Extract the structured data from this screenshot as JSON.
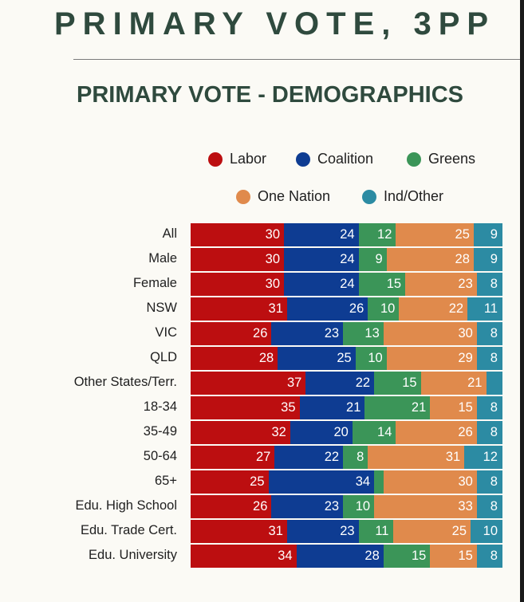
{
  "header": {
    "title": "PRIMARY VOTE, 3PP"
  },
  "chart_data": {
    "type": "bar",
    "orientation": "horizontal-stacked-100",
    "title": "PRIMARY VOTE - DEMOGRAPHICS",
    "legend_position": "top",
    "series_colors": {
      "Labor": "#bc0e10",
      "Coalition": "#0e3c92",
      "Greens": "#3b9558",
      "One Nation": "#e08a4c",
      "Ind/Other": "#2c8ba3"
    },
    "series": [
      {
        "name": "Labor",
        "values": [
          30,
          30,
          30,
          31,
          26,
          28,
          37,
          35,
          32,
          27,
          25,
          26,
          31,
          34
        ]
      },
      {
        "name": "Coalition",
        "values": [
          24,
          24,
          24,
          26,
          23,
          25,
          22,
          21,
          20,
          22,
          34,
          23,
          23,
          28
        ]
      },
      {
        "name": "Greens",
        "values": [
          12,
          9,
          15,
          10,
          13,
          10,
          15,
          21,
          14,
          8,
          null,
          10,
          11,
          15
        ]
      },
      {
        "name": "One Nation",
        "values": [
          25,
          28,
          23,
          22,
          30,
          29,
          21,
          15,
          26,
          31,
          30,
          33,
          25,
          15
        ]
      },
      {
        "name": "Ind/Other",
        "values": [
          9,
          9,
          8,
          11,
          8,
          8,
          null,
          8,
          8,
          12,
          8,
          8,
          10,
          8
        ]
      }
    ],
    "estimated_unlabeled": {
      "Greens|65+": 3,
      "Ind/Other|Other States/Terr.": 5
    },
    "categories": [
      "All",
      "Male",
      "Female",
      "NSW",
      "VIC",
      "QLD",
      "Other States/Terr.",
      "18-34",
      "35-49",
      "50-64",
      "65+",
      "Edu. High School",
      "Edu. Trade Cert.",
      "Edu. University"
    ]
  }
}
